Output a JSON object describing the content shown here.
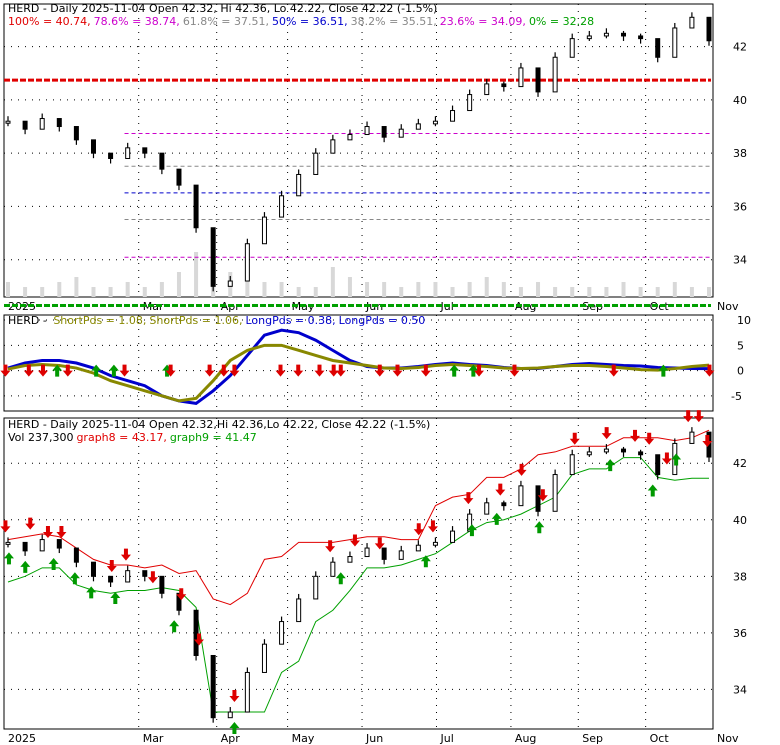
{
  "chart_data": [
    {
      "type": "line",
      "panel": "price-fibonacci",
      "legend": [
        {
          "text": "HERD - Daily 2025-11-04 Open 42.32, Hi 42.36, Lo 42.22, Close 42.22 (-1.5%)",
          "color": "#000000"
        },
        {
          "text": "100% = 40.74,",
          "color": "#e00000"
        },
        {
          "text": "78.6% = 38.74,",
          "color": "#cc00cc"
        },
        {
          "text": "61.8% = 37.51,",
          "color": "#888888"
        },
        {
          "text": "50% = 36.51,",
          "color": "#0000cc"
        },
        {
          "text": "38.2% = 35.51,",
          "color": "#888888"
        },
        {
          "text": "23.6% = 34.09,",
          "color": "#cc00cc"
        },
        {
          "text": "0% = 32.28",
          "color": "#00a000"
        }
      ],
      "fib_levels": [
        {
          "pct": "100%",
          "value": 40.74,
          "color": "#e00000"
        },
        {
          "pct": "78.6%",
          "value": 38.74,
          "color": "#cc00cc"
        },
        {
          "pct": "61.8%",
          "value": 37.51,
          "color": "#888888"
        },
        {
          "pct": "50%",
          "value": 36.51,
          "color": "#0000cc"
        },
        {
          "pct": "38.2%",
          "value": 35.51,
          "color": "#888888"
        },
        {
          "pct": "23.6%",
          "value": 34.09,
          "color": "#cc00cc"
        },
        {
          "pct": "0%",
          "value": 32.28,
          "color": "#00a000"
        }
      ],
      "yticks": [
        "42",
        "40",
        "38",
        "36",
        "34"
      ],
      "ylim": [
        32.6,
        43.6
      ],
      "xlabels": [
        "2025",
        "Mar",
        "Apr",
        "May",
        "Jun",
        "Jul",
        "Aug",
        "Sep",
        "Oct",
        "Nov"
      ],
      "x_month_index": [
        0,
        1.9,
        3.0,
        4.0,
        5.05,
        6.1,
        7.15,
        8.1,
        9.05,
        10.0
      ],
      "grid": true
    },
    {
      "type": "line",
      "panel": "oscillator",
      "legend": [
        {
          "text": "HERD - ",
          "color": "#000000"
        },
        {
          "text": "ShortPds = 1.08,",
          "color": "#888800"
        },
        {
          "text": "ShortPds = 1.06,",
          "color": "#888800"
        },
        {
          "text": "LongPds = 0.38,",
          "color": "#0000cc"
        },
        {
          "text": "LongPds = 0.50",
          "color": "#0000cc"
        }
      ],
      "yticks": [
        "10",
        "5",
        "0",
        "-5"
      ],
      "ylim": [
        -8,
        11
      ],
      "series": [
        {
          "name": "LongPds",
          "color": "#0000cc",
          "values": [
            0.5,
            1.5,
            2,
            2,
            1.5,
            0.5,
            -1,
            -2,
            -3,
            -5,
            -6,
            -6.5,
            -4,
            -1,
            3,
            7,
            8,
            7.5,
            6,
            4,
            2,
            0.8,
            0.5,
            0.5,
            0.8,
            1.2,
            1.5,
            1.2,
            1,
            0.6,
            0.4,
            0.4,
            0.8,
            1.2,
            1.4,
            1.2,
            1,
            0.9,
            0.6,
            0.5,
            0.4,
            0.38
          ]
        },
        {
          "name": "ShortPds",
          "color": "#888800",
          "values": [
            0.3,
            1,
            1.2,
            1,
            0.5,
            -0.5,
            -2,
            -3,
            -4,
            -5,
            -6,
            -5.5,
            -2,
            2,
            4,
            5,
            5,
            4,
            3,
            2,
            1.5,
            1,
            0.5,
            0.4,
            0.6,
            1,
            1.2,
            1,
            0.8,
            0.5,
            0.4,
            0.5,
            0.8,
            1,
            1,
            0.8,
            0.5,
            0.2,
            0.1,
            0.4,
            0.8,
            1.08
          ]
        }
      ],
      "up_arrows": [
        0.75,
        1.3,
        1.55,
        2.3,
        6.35,
        6.62,
        9.3
      ],
      "down_arrows": [
        0.02,
        0.35,
        0.55,
        0.9,
        1.7,
        2.35,
        2.9,
        3.1,
        3.25,
        3.9,
        4.15,
        4.45,
        4.65,
        4.75,
        5.3,
        5.55,
        5.95,
        6.7,
        7.2,
        8.6,
        9.95
      ],
      "grid": true
    },
    {
      "type": "line",
      "panel": "price-stops",
      "legend": [
        {
          "text": "HERD - Daily 2025-11-04 Open 42.32,Hi 42.36,Lo 42.22, Close 42.22 (-1.5%)",
          "color": "#000000"
        },
        {
          "text": "Vol 237,300",
          "color": "#000000"
        },
        {
          "text": "graph8 = 43.17,",
          "color": "#e00000"
        },
        {
          "text": "graph9 = 41.47",
          "color": "#00a000"
        }
      ],
      "yticks": [
        "42",
        "40",
        "38",
        "36",
        "34"
      ],
      "ylim": [
        32.6,
        43.6
      ],
      "xlabels": [
        "2025",
        "Mar",
        "Apr",
        "May",
        "Jun",
        "Jul",
        "Aug",
        "Sep",
        "Oct",
        "Nov"
      ],
      "grid": true,
      "series": [
        {
          "name": "graph8",
          "color": "#e00000",
          "values": [
            39.3,
            39.4,
            39.5,
            39.4,
            39,
            38.6,
            38.4,
            38.4,
            38.3,
            38.4,
            38.1,
            38.2,
            37.2,
            37,
            37.4,
            38.6,
            38.7,
            39.2,
            39.2,
            39.2,
            39.3,
            39.4,
            39.4,
            39.3,
            39.3,
            40.5,
            40.8,
            40.9,
            41.5,
            41.5,
            41.8,
            42.3,
            42.4,
            42.6,
            42.6,
            42.6,
            42.9,
            42.9,
            42.9,
            42.8,
            42.9,
            43.17
          ]
        },
        {
          "name": "graph9",
          "color": "#00a000",
          "values": [
            37.8,
            38,
            38.3,
            38.3,
            37.7,
            37.5,
            37.4,
            37.5,
            37.5,
            37.6,
            37.5,
            36.9,
            33.2,
            33.2,
            33.2,
            33.2,
            34.6,
            35,
            36.4,
            36.8,
            37.5,
            38.3,
            38.3,
            38.4,
            38.6,
            38.8,
            39.2,
            39.6,
            39.9,
            40,
            40.2,
            40.5,
            40.8,
            41.6,
            41.8,
            41.8,
            42.2,
            42.2,
            41.5,
            41.4,
            41.47,
            41.47
          ]
        }
      ],
      "up_arrows": [
        0.07,
        0.3,
        0.7,
        1.0,
        1.23,
        1.57,
        2.4,
        3.25,
        4.75,
        5.95,
        6.6,
        6.95,
        7.55,
        8.55,
        9.15,
        9.48
      ],
      "down_arrows": [
        0.02,
        0.37,
        0.62,
        0.81,
        1.52,
        1.72,
        2.1,
        2.5,
        2.75,
        3.25,
        4.6,
        4.95,
        5.3,
        5.85,
        6.05,
        6.55,
        7.0,
        7.3,
        7.6,
        8.05,
        8.5,
        8.9,
        9.1,
        9.35,
        9.65,
        9.8,
        9.92
      ]
    }
  ],
  "price_series": [
    39.2,
    38.9,
    39.3,
    39.0,
    38.5,
    38.0,
    37.8,
    38.2,
    38.0,
    37.4,
    36.8,
    35.2,
    33.0,
    33.2,
    34.6,
    35.6,
    36.4,
    37.2,
    38.0,
    38.5,
    38.7,
    39.0,
    38.6,
    38.9,
    39.1,
    39.2,
    39.6,
    40.2,
    40.6,
    40.5,
    41.2,
    40.3,
    41.6,
    42.3,
    42.4,
    42.5,
    42.4,
    42.3,
    41.6,
    42.7,
    43.1,
    42.22
  ],
  "volume_series": [
    3,
    2,
    2,
    3,
    4,
    2,
    2,
    3,
    2,
    3,
    5,
    9,
    6,
    5,
    4,
    3,
    3,
    2,
    2,
    6,
    4,
    3,
    3,
    2,
    3,
    3,
    2,
    3,
    4,
    3,
    2,
    3,
    2,
    2,
    2,
    2,
    3,
    2,
    2,
    3,
    2,
    2
  ]
}
